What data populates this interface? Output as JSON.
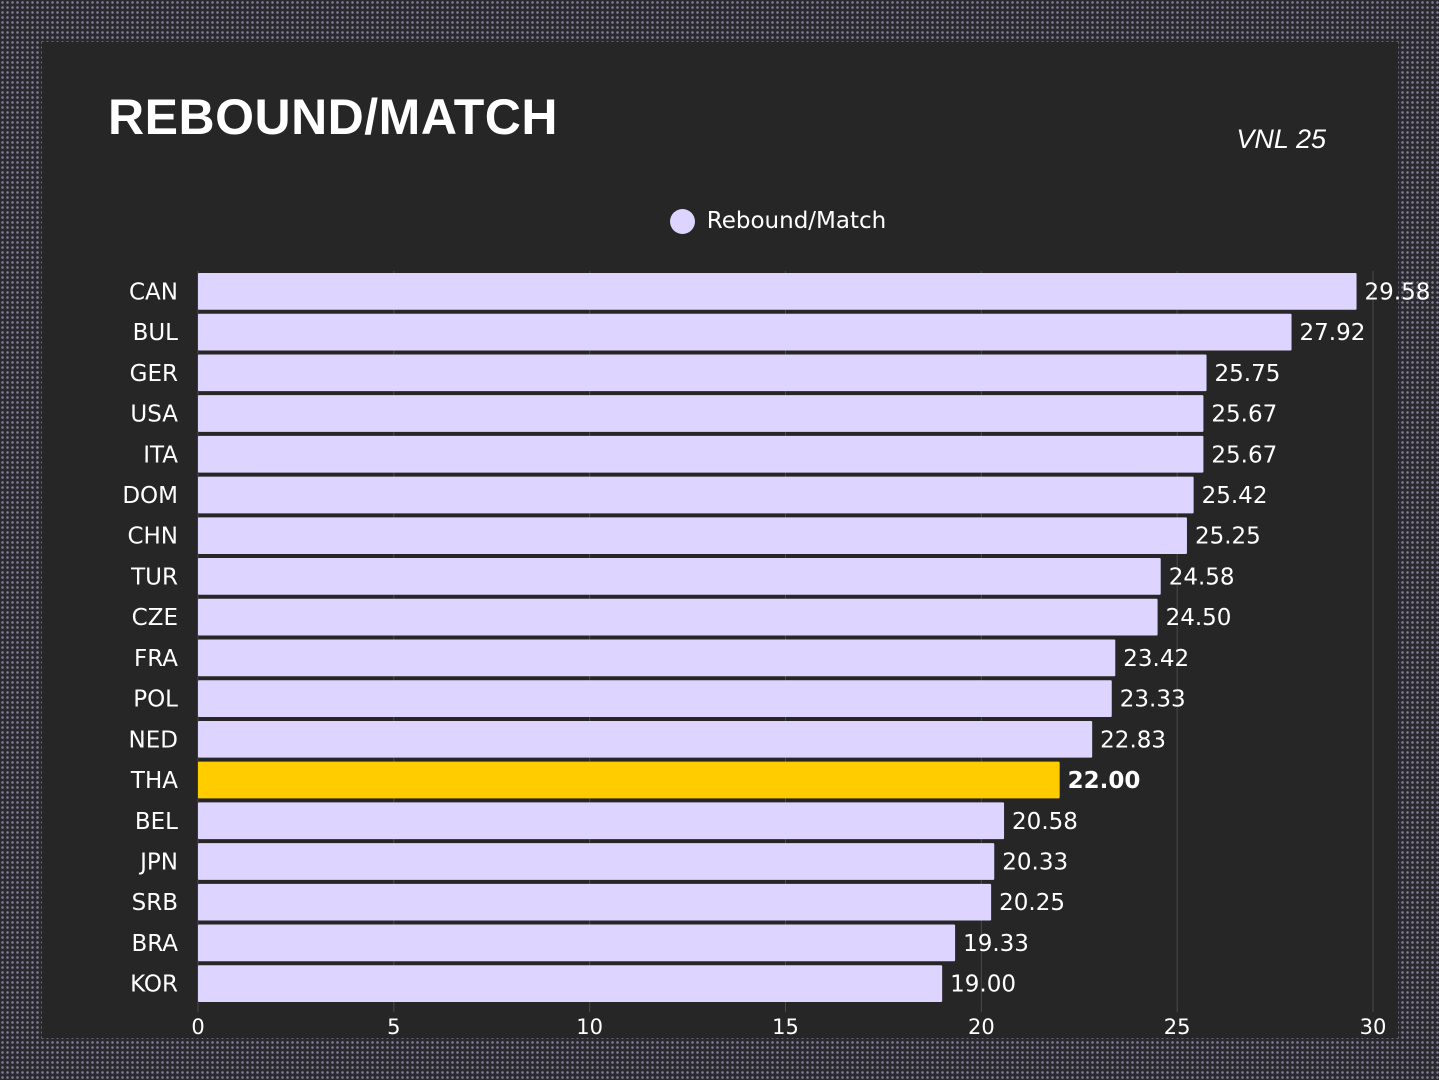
{
  "header": {
    "title": "REBOUND/MATCH",
    "subtitle": "VNL 25"
  },
  "chart_data": {
    "type": "bar",
    "orientation": "horizontal",
    "categories": [
      "CAN",
      "BUL",
      "GER",
      "USA",
      "ITA",
      "DOM",
      "CHN",
      "TUR",
      "CZE",
      "FRA",
      "POL",
      "NED",
      "THA",
      "BEL",
      "JPN",
      "SRB",
      "BRA",
      "KOR"
    ],
    "series": [
      {
        "name": "Rebound/Match",
        "values": [
          29.58,
          27.92,
          25.75,
          25.67,
          25.67,
          25.42,
          25.25,
          24.58,
          24.5,
          23.42,
          23.33,
          22.83,
          22.0,
          20.58,
          20.33,
          20.25,
          19.33,
          19.0
        ],
        "value_labels": [
          "29.58",
          "27.92",
          "25.75",
          "25.67",
          "25.67",
          "25.42",
          "25.25",
          "24.58",
          "24.50",
          "23.42",
          "23.33",
          "22.83",
          "22.00",
          "20.58",
          "20.33",
          "20.25",
          "19.33",
          "19.00"
        ],
        "color": "#ddd5ff"
      }
    ],
    "highlight": {
      "category": "THA",
      "color": "#ffcc00",
      "label_color": "#ffd84a"
    },
    "xlim": [
      0,
      30
    ],
    "xticks": [
      0,
      5,
      10,
      15,
      20,
      25,
      30
    ],
    "grid": true,
    "legend": "top-center"
  }
}
